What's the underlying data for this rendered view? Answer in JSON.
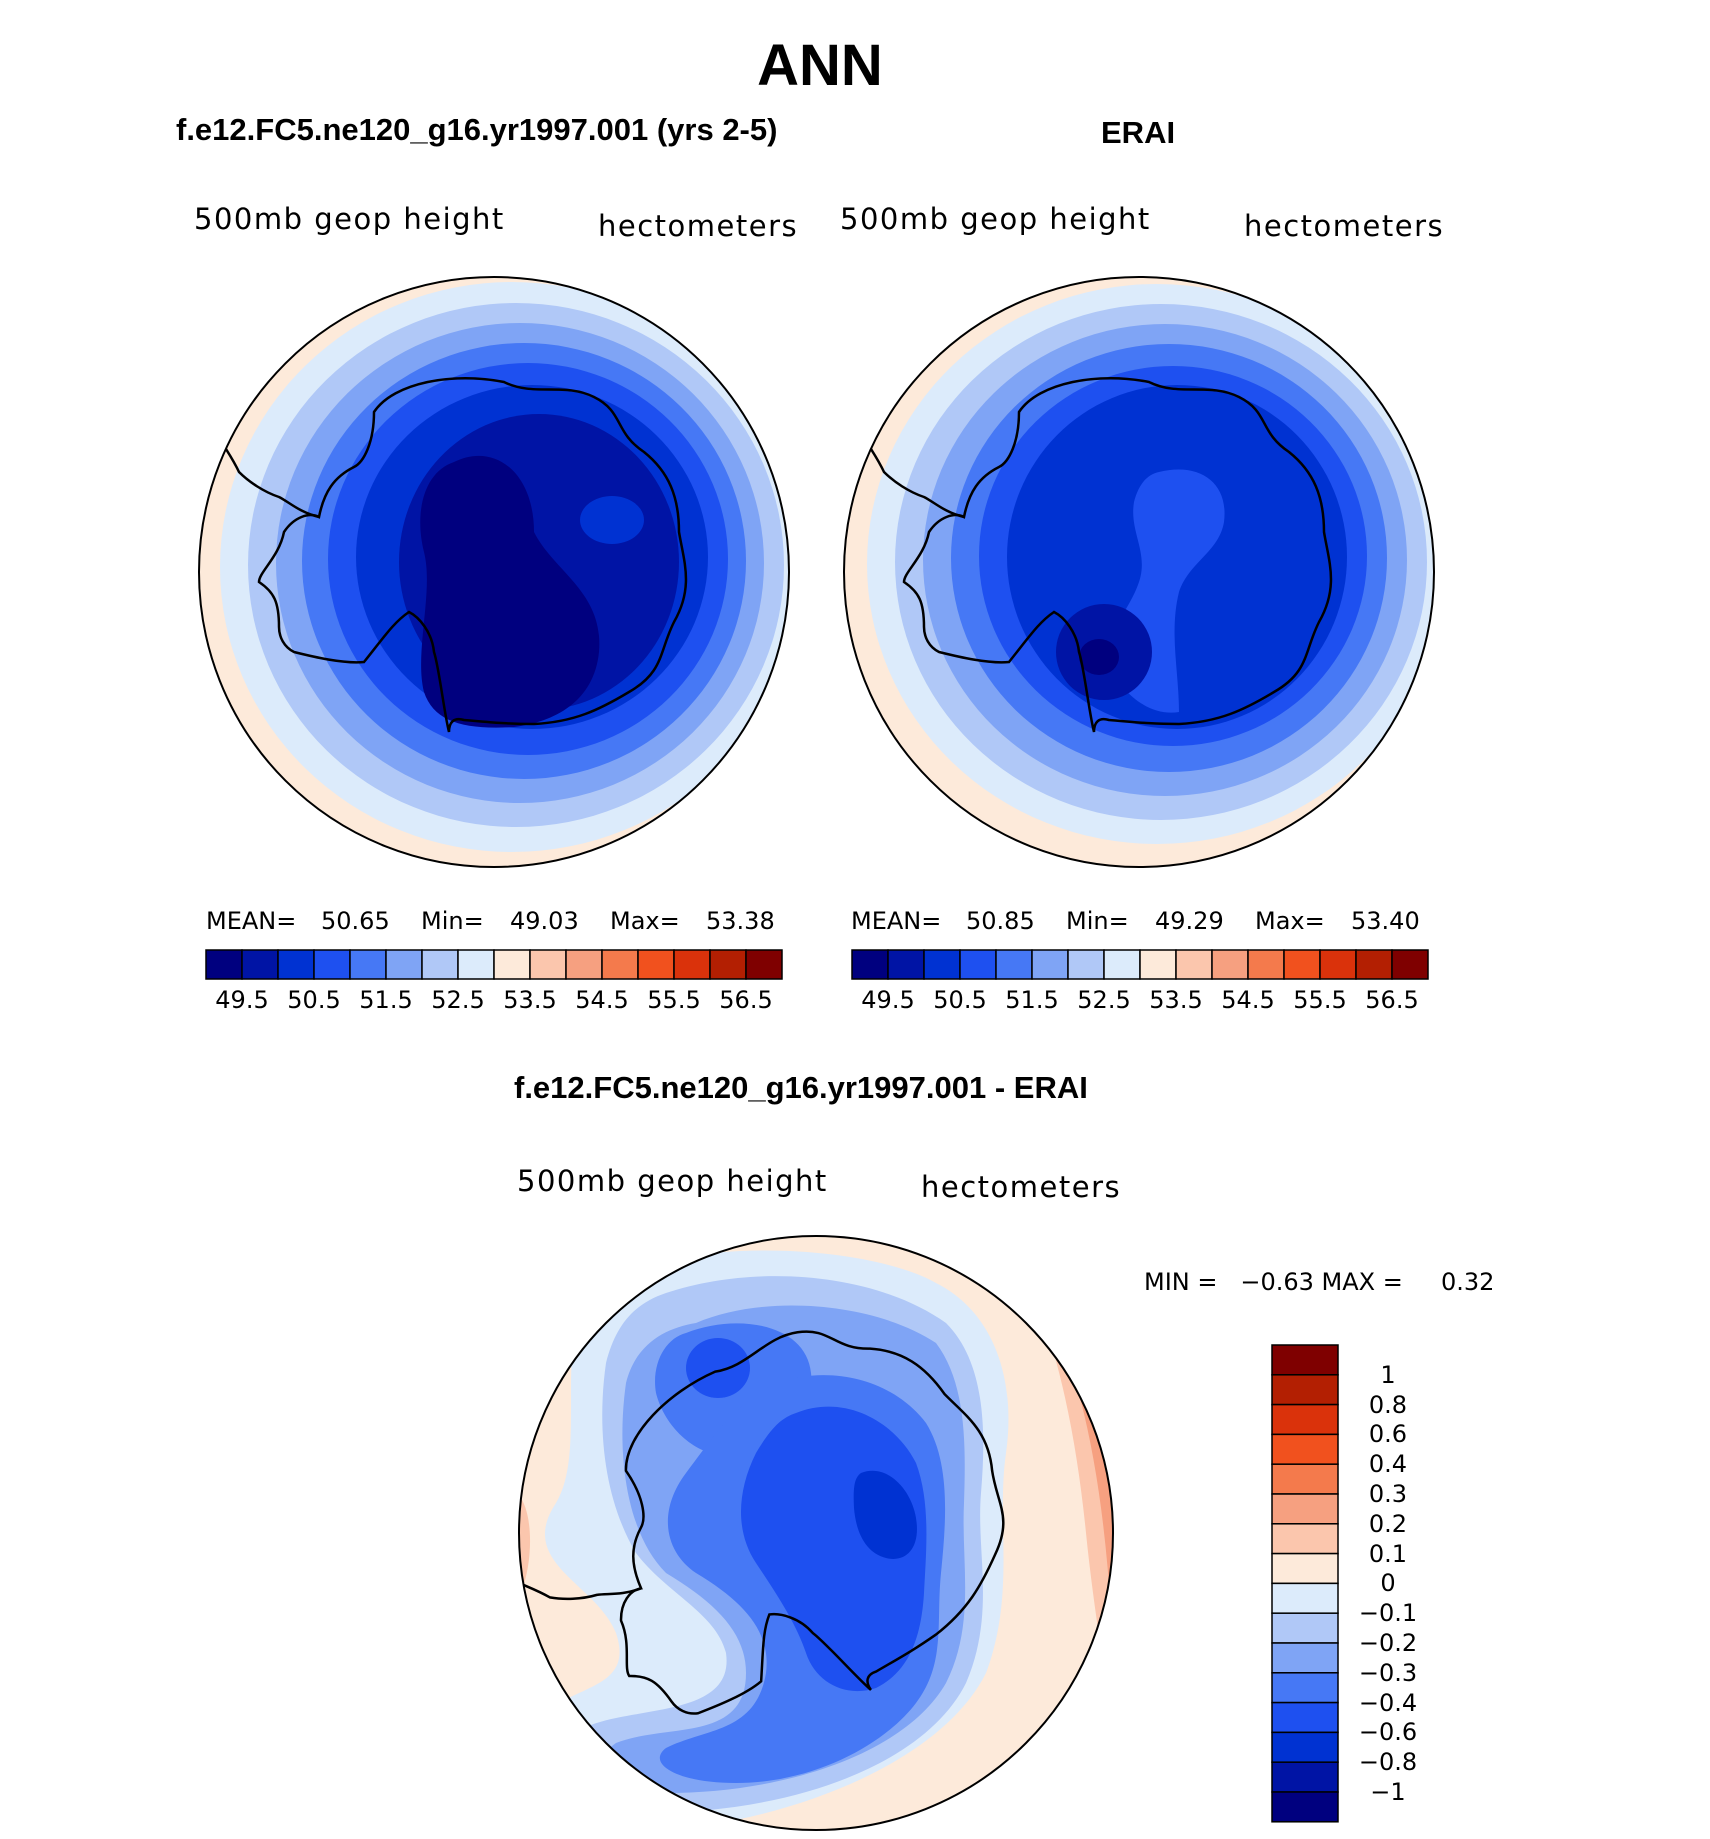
{
  "title": "ANN",
  "panels": [
    {
      "id": "model",
      "title": "f.e12.FC5.ne120_g16.yr1997.001 (yrs 2-5)",
      "left_label": "500mb geop height",
      "right_label": "hectometers",
      "stats": {
        "mean_label": "MEAN=",
        "mean": "50.65",
        "min_label": "Min=",
        "min": "49.03",
        "max_label": "Max=",
        "max": "53.38"
      }
    },
    {
      "id": "erai",
      "title": "ERAI",
      "left_label": "500mb geop height",
      "right_label": "hectometers",
      "stats": {
        "mean_label": "MEAN=",
        "mean": "50.85",
        "min_label": "Min=",
        "min": "49.29",
        "max_label": "Max=",
        "max": "53.40"
      }
    },
    {
      "id": "diff",
      "title": "f.e12.FC5.ne120_g16.yr1997.001 - ERAI",
      "left_label": "500mb geop height",
      "right_label": "hectometers",
      "stats_text": "MIN =   −0.63 MAX =     0.32"
    }
  ],
  "abs_colorbar": {
    "colors": [
      "#00007f",
      "#0014a5",
      "#0032d2",
      "#1e50f0",
      "#4678f5",
      "#7fa4f5",
      "#b0c8f7",
      "#dcebfb",
      "#fdeada",
      "#fbc6ad",
      "#f6a080",
      "#f47a4c",
      "#f1511e",
      "#da320b",
      "#b31f02",
      "#7f0000"
    ],
    "labels": [
      "49.5",
      "50.5",
      "51.5",
      "52.5",
      "53.5",
      "54.5",
      "55.5",
      "56.5"
    ]
  },
  "diff_colorbar": {
    "colors_top_to_bottom": [
      "#7f0000",
      "#b31f02",
      "#da320b",
      "#f1511e",
      "#f47a4c",
      "#f6a080",
      "#fbc6ad",
      "#fdeada",
      "#dcebfb",
      "#b0c8f7",
      "#7fa4f5",
      "#4678f5",
      "#1e50f0",
      "#0032d2",
      "#0014a5",
      "#00007f"
    ],
    "labels_top_to_bottom": [
      "1",
      "0.8",
      "0.6",
      "0.4",
      "0.3",
      "0.2",
      "0.1",
      "0",
      "−0.1",
      "−0.2",
      "−0.3",
      "−0.4",
      "−0.6",
      "−0.8",
      "−1"
    ]
  }
}
